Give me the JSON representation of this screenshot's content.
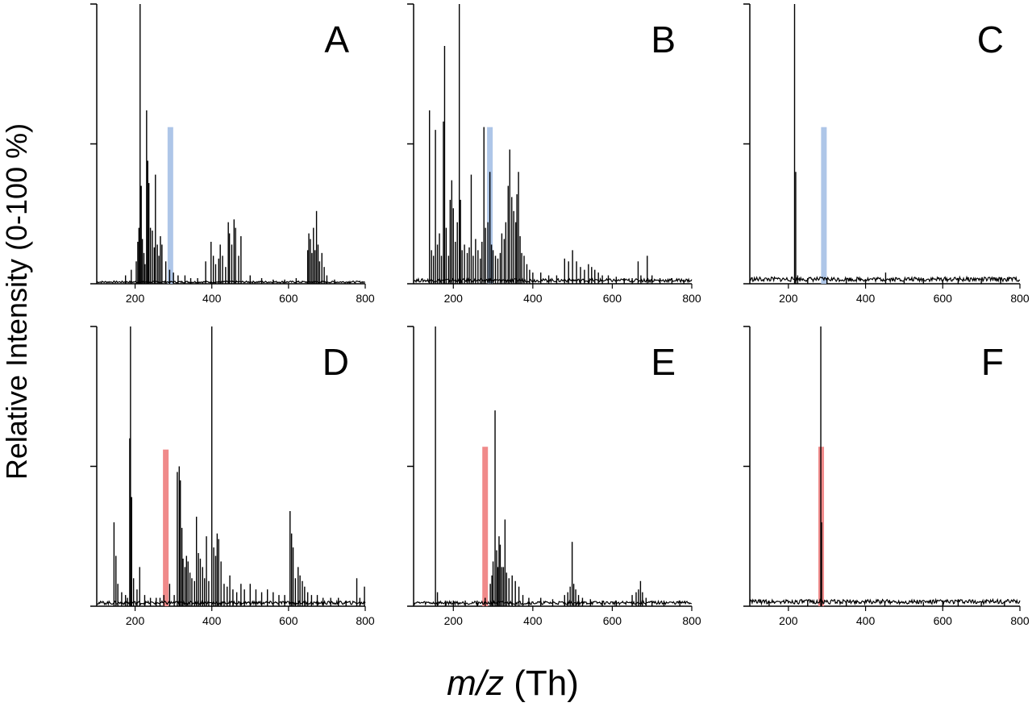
{
  "figure": {
    "ylabel": "Relative Intensity (0-100 %)",
    "xlabel_italic": "m/z",
    "xlabel_rest": " (Th)"
  },
  "chart_data": [
    {
      "type": "bar",
      "panel": "A",
      "xlim": [
        100,
        800
      ],
      "ylim": [
        0,
        100
      ],
      "x_ticks": [
        200,
        400,
        600,
        800
      ],
      "marker": {
        "x": 292,
        "height": 56,
        "color": "#aec6e8"
      },
      "peaks": [
        [
          175,
          3
        ],
        [
          190,
          5
        ],
        [
          203,
          8
        ],
        [
          207,
          15
        ],
        [
          210,
          20
        ],
        [
          213,
          100
        ],
        [
          216,
          35
        ],
        [
          219,
          16
        ],
        [
          223,
          11
        ],
        [
          226,
          7
        ],
        [
          230,
          62
        ],
        [
          233,
          44
        ],
        [
          236,
          36
        ],
        [
          240,
          20
        ],
        [
          245,
          19
        ],
        [
          250,
          13
        ],
        [
          253,
          39
        ],
        [
          258,
          14
        ],
        [
          262,
          10
        ],
        [
          266,
          17
        ],
        [
          270,
          14
        ],
        [
          280,
          8
        ],
        [
          290,
          5
        ],
        [
          300,
          4
        ],
        [
          312,
          3
        ],
        [
          330,
          3
        ],
        [
          345,
          2
        ],
        [
          363,
          2
        ],
        [
          384,
          8
        ],
        [
          398,
          15
        ],
        [
          404,
          10
        ],
        [
          410,
          7
        ],
        [
          418,
          9
        ],
        [
          422,
          14
        ],
        [
          428,
          10
        ],
        [
          436,
          6
        ],
        [
          443,
          22
        ],
        [
          446,
          18
        ],
        [
          452,
          14
        ],
        [
          458,
          23
        ],
        [
          462,
          20
        ],
        [
          470,
          10
        ],
        [
          476,
          17
        ],
        [
          500,
          3
        ],
        [
          530,
          2
        ],
        [
          560,
          1.5
        ],
        [
          590,
          1.5
        ],
        [
          620,
          2
        ],
        [
          650,
          12
        ],
        [
          653,
          18
        ],
        [
          657,
          16
        ],
        [
          661,
          11
        ],
        [
          665,
          20
        ],
        [
          669,
          12
        ],
        [
          673,
          26
        ],
        [
          677,
          14
        ],
        [
          681,
          8
        ],
        [
          687,
          11
        ],
        [
          693,
          6
        ],
        [
          700,
          3
        ],
        [
          720,
          1.5
        ],
        [
          760,
          1
        ]
      ],
      "baseline": 0.8
    },
    {
      "type": "bar",
      "panel": "B",
      "xlim": [
        100,
        800
      ],
      "ylim": [
        0,
        100
      ],
      "x_ticks": [
        200,
        400,
        600,
        800
      ],
      "marker": {
        "x": 292,
        "height": 56,
        "color": "#aec6e8"
      },
      "peaks": [
        [
          140,
          62
        ],
        [
          145,
          12
        ],
        [
          150,
          10
        ],
        [
          155,
          55
        ],
        [
          160,
          14
        ],
        [
          165,
          18
        ],
        [
          170,
          10
        ],
        [
          175,
          58
        ],
        [
          178,
          85
        ],
        [
          182,
          20
        ],
        [
          188,
          10
        ],
        [
          192,
          30
        ],
        [
          196,
          37
        ],
        [
          200,
          27
        ],
        [
          205,
          15
        ],
        [
          210,
          22
        ],
        [
          215,
          100
        ],
        [
          218,
          30
        ],
        [
          222,
          12
        ],
        [
          228,
          14
        ],
        [
          235,
          11
        ],
        [
          240,
          13
        ],
        [
          245,
          39
        ],
        [
          250,
          10
        ],
        [
          256,
          16
        ],
        [
          262,
          12
        ],
        [
          268,
          9
        ],
        [
          272,
          15
        ],
        [
          277,
          56
        ],
        [
          281,
          20
        ],
        [
          287,
          22
        ],
        [
          292,
          40
        ],
        [
          296,
          14
        ],
        [
          300,
          12
        ],
        [
          306,
          10
        ],
        [
          312,
          9
        ],
        [
          318,
          11
        ],
        [
          322,
          18
        ],
        [
          328,
          16
        ],
        [
          332,
          22
        ],
        [
          338,
          35
        ],
        [
          342,
          48
        ],
        [
          347,
          31
        ],
        [
          352,
          26
        ],
        [
          357,
          22
        ],
        [
          360,
          32
        ],
        [
          364,
          40
        ],
        [
          368,
          17
        ],
        [
          372,
          11
        ],
        [
          378,
          10
        ],
        [
          385,
          7
        ],
        [
          392,
          5
        ],
        [
          400,
          4
        ],
        [
          420,
          4
        ],
        [
          440,
          3
        ],
        [
          460,
          3
        ],
        [
          480,
          9
        ],
        [
          490,
          8
        ],
        [
          500,
          12
        ],
        [
          510,
          8
        ],
        [
          520,
          6
        ],
        [
          530,
          5
        ],
        [
          540,
          7
        ],
        [
          548,
          6
        ],
        [
          556,
          5
        ],
        [
          565,
          4
        ],
        [
          575,
          3
        ],
        [
          590,
          3
        ],
        [
          610,
          2.5
        ],
        [
          630,
          2
        ],
        [
          650,
          2
        ],
        [
          665,
          8
        ],
        [
          672,
          3
        ],
        [
          688,
          10
        ],
        [
          700,
          3
        ],
        [
          720,
          2
        ],
        [
          750,
          2
        ],
        [
          780,
          1.5
        ]
      ],
      "baseline": 1.5
    },
    {
      "type": "bar",
      "panel": "C",
      "xlim": [
        100,
        800
      ],
      "ylim": [
        0,
        100
      ],
      "x_ticks": [
        200,
        400,
        600,
        800
      ],
      "marker": {
        "x": 292,
        "height": 56,
        "color": "#aec6e8"
      },
      "peaks": [
        [
          216,
          100
        ],
        [
          219,
          40
        ],
        [
          224,
          3
        ],
        [
          250,
          2
        ],
        [
          300,
          2
        ],
        [
          350,
          1.5
        ],
        [
          400,
          1.5
        ],
        [
          452,
          4
        ],
        [
          500,
          1.5
        ],
        [
          550,
          1.5
        ],
        [
          600,
          1.5
        ],
        [
          640,
          2
        ],
        [
          700,
          1.5
        ],
        [
          750,
          1.5
        ]
      ],
      "baseline": 2
    },
    {
      "type": "bar",
      "panel": "D",
      "xlim": [
        100,
        800
      ],
      "ylim": [
        0,
        100
      ],
      "x_ticks": [
        200,
        400,
        600,
        800
      ],
      "marker": {
        "x": 280,
        "height": 56,
        "color": "#f08a8a"
      },
      "peaks": [
        [
          145,
          30
        ],
        [
          150,
          18
        ],
        [
          155,
          8
        ],
        [
          165,
          5
        ],
        [
          175,
          4
        ],
        [
          180,
          3
        ],
        [
          186,
          60
        ],
        [
          188,
          100
        ],
        [
          191,
          39
        ],
        [
          196,
          10
        ],
        [
          205,
          6
        ],
        [
          212,
          14
        ],
        [
          225,
          4
        ],
        [
          240,
          3
        ],
        [
          255,
          3
        ],
        [
          265,
          3
        ],
        [
          275,
          4
        ],
        [
          290,
          8
        ],
        [
          302,
          4
        ],
        [
          310,
          48
        ],
        [
          315,
          50
        ],
        [
          318,
          45
        ],
        [
          322,
          28
        ],
        [
          325,
          17
        ],
        [
          330,
          14
        ],
        [
          334,
          18
        ],
        [
          338,
          16
        ],
        [
          343,
          12
        ],
        [
          348,
          10
        ],
        [
          355,
          9
        ],
        [
          360,
          32
        ],
        [
          365,
          19
        ],
        [
          370,
          17
        ],
        [
          376,
          14
        ],
        [
          381,
          10
        ],
        [
          386,
          25
        ],
        [
          392,
          9
        ],
        [
          400,
          100
        ],
        [
          405,
          21
        ],
        [
          410,
          18
        ],
        [
          414,
          26
        ],
        [
          418,
          24
        ],
        [
          424,
          16
        ],
        [
          432,
          8
        ],
        [
          440,
          7
        ],
        [
          447,
          11
        ],
        [
          455,
          6
        ],
        [
          465,
          5
        ],
        [
          476,
          8
        ],
        [
          485,
          6
        ],
        [
          500,
          8
        ],
        [
          515,
          6
        ],
        [
          530,
          5
        ],
        [
          545,
          6
        ],
        [
          560,
          5
        ],
        [
          575,
          4
        ],
        [
          590,
          4
        ],
        [
          604,
          34
        ],
        [
          608,
          26
        ],
        [
          612,
          21
        ],
        [
          618,
          10
        ],
        [
          625,
          14
        ],
        [
          630,
          11
        ],
        [
          636,
          9
        ],
        [
          642,
          7
        ],
        [
          650,
          5
        ],
        [
          660,
          4
        ],
        [
          675,
          4
        ],
        [
          690,
          3
        ],
        [
          710,
          3
        ],
        [
          730,
          3
        ],
        [
          750,
          2
        ],
        [
          778,
          10
        ],
        [
          786,
          3
        ],
        [
          798,
          7
        ]
      ],
      "baseline": 1.5
    },
    {
      "type": "bar",
      "panel": "E",
      "xlim": [
        100,
        800
      ],
      "ylim": [
        0,
        100
      ],
      "x_ticks": [
        200,
        400,
        600,
        800
      ],
      "marker": {
        "x": 280,
        "height": 57,
        "color": "#f08a8a"
      },
      "peaks": [
        [
          155,
          100
        ],
        [
          160,
          5
        ],
        [
          180,
          2
        ],
        [
          200,
          2
        ],
        [
          230,
          2
        ],
        [
          260,
          2
        ],
        [
          280,
          3
        ],
        [
          293,
          8
        ],
        [
          297,
          11
        ],
        [
          300,
          16
        ],
        [
          305,
          70
        ],
        [
          309,
          20
        ],
        [
          312,
          14
        ],
        [
          315,
          25
        ],
        [
          318,
          22
        ],
        [
          322,
          14
        ],
        [
          326,
          14
        ],
        [
          330,
          31
        ],
        [
          334,
          12
        ],
        [
          340,
          10
        ],
        [
          348,
          11
        ],
        [
          356,
          9
        ],
        [
          365,
          7
        ],
        [
          375,
          4
        ],
        [
          390,
          3
        ],
        [
          420,
          3
        ],
        [
          450,
          2.5
        ],
        [
          480,
          4
        ],
        [
          488,
          5
        ],
        [
          494,
          7
        ],
        [
          499,
          23
        ],
        [
          503,
          8
        ],
        [
          508,
          6
        ],
        [
          515,
          4
        ],
        [
          525,
          3
        ],
        [
          545,
          2.5
        ],
        [
          575,
          2
        ],
        [
          610,
          2
        ],
        [
          650,
          4
        ],
        [
          660,
          5
        ],
        [
          666,
          6
        ],
        [
          671,
          9
        ],
        [
          676,
          5
        ],
        [
          685,
          3
        ],
        [
          700,
          2
        ],
        [
          730,
          2
        ],
        [
          770,
          2
        ]
      ],
      "baseline": 1.5
    },
    {
      "type": "bar",
      "panel": "F",
      "xlim": [
        100,
        800
      ],
      "ylim": [
        0,
        100
      ],
      "x_ticks": [
        200,
        400,
        600,
        800
      ],
      "marker": {
        "x": 285,
        "height": 57,
        "color": "#f08a8a"
      },
      "peaks": [
        [
          284,
          100
        ],
        [
          286,
          30
        ],
        [
          150,
          2
        ],
        [
          250,
          2
        ],
        [
          350,
          1.5
        ],
        [
          450,
          1.5
        ],
        [
          550,
          1.5
        ],
        [
          600,
          2
        ],
        [
          640,
          2.5
        ],
        [
          700,
          1.5
        ],
        [
          760,
          1.5
        ]
      ],
      "baseline": 2
    }
  ]
}
